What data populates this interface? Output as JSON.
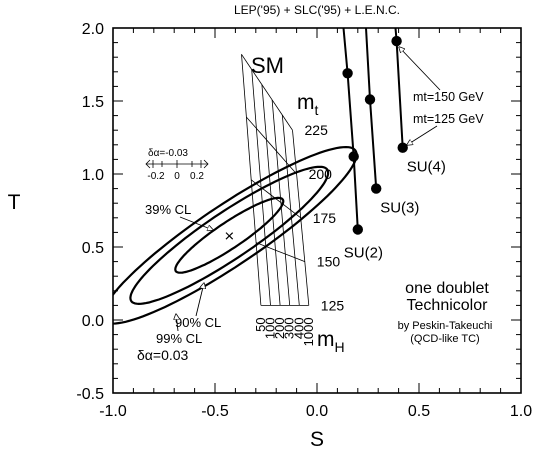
{
  "chart_data": {
    "type": "scatter",
    "title": "LEP('95) + SLC('95) + L.E.N.C.",
    "xlabel": "S",
    "ylabel": "T",
    "xlim": [
      -1.0,
      1.0
    ],
    "ylim": [
      -0.5,
      2.0
    ],
    "xticks": [
      -1.0,
      -0.5,
      0.0,
      0.5,
      1.0
    ],
    "yticks": [
      -0.5,
      0.0,
      0.5,
      1.0,
      1.5,
      2.0
    ],
    "grid": false,
    "fit": {
      "center": [
        -0.43,
        0.58
      ],
      "marker": "×",
      "contours": [
        {
          "label": "39% CL",
          "semi_major": 0.36,
          "semi_minor": 0.078,
          "angle_deg": 44
        },
        {
          "label": "90% CL",
          "semi_major": 0.66,
          "semi_minor": 0.14,
          "angle_deg": 44
        },
        {
          "label": "99% CL",
          "semi_major": 0.85,
          "semi_minor": 0.18,
          "angle_deg": 44
        }
      ],
      "contour_label_texts": [
        "39% CL",
        "90% CL",
        "99% CL"
      ]
    },
    "sm_grid": {
      "label": "SM",
      "mt_label_base": "m",
      "mt_label_sub": "t",
      "mh_label_base": "m",
      "mh_label_sub": "H",
      "mt_values": [
        125,
        150,
        175,
        200,
        225
      ],
      "mh_values": [
        50,
        100,
        200,
        300,
        400,
        1000
      ],
      "corners": {
        "mt125_mh50": [
          -0.275,
          0.1
        ],
        "mt125_mh1000": [
          -0.04,
          0.1
        ],
        "mt225_mh50": [
          -0.37,
          1.82
        ],
        "mt225_mh1000": [
          -0.12,
          1.3
        ]
      }
    },
    "delta_alpha": {
      "top_label": "δα=-0.03",
      "bottom_label": "δα=0.03",
      "scale_ticks": [
        "-0.2",
        "0",
        "0.2"
      ]
    },
    "technicolor": {
      "title_lines": [
        "one doublet",
        "Technicolor"
      ],
      "credit_lines": [
        "by Peskin-Takeuchi",
        "(QCD-like TC)"
      ],
      "mt_markers": [
        "mt=150 GeV",
        "mt=125 GeV"
      ],
      "lines": [
        {
          "name": "SU(2)",
          "points": [
            [
              0.15,
              1.69
            ],
            [
              0.18,
              1.12
            ],
            [
              0.2,
              0.62
            ]
          ],
          "top": [
            0.13,
            2.0
          ]
        },
        {
          "name": "SU(3)",
          "points": [
            [
              0.26,
              1.51
            ],
            [
              0.29,
              0.9
            ]
          ],
          "top": [
            0.24,
            2.0
          ]
        },
        {
          "name": "SU(4)",
          "points": [
            [
              0.39,
              1.91
            ],
            [
              0.42,
              1.18
            ]
          ],
          "top": [
            0.385,
            2.0
          ]
        }
      ]
    }
  }
}
